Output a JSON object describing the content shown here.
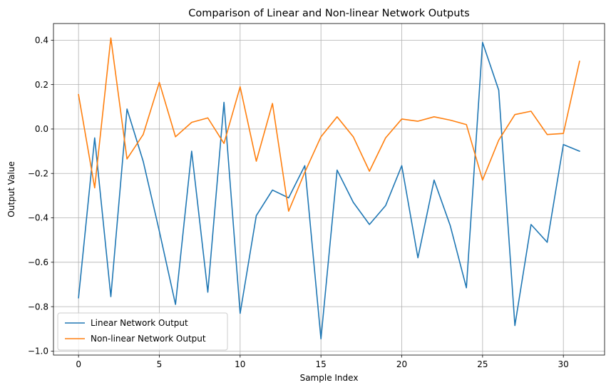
{
  "chart_data": {
    "type": "line",
    "title": "Comparison of Linear and Non-linear Network Outputs",
    "xlabel": "Sample Index",
    "ylabel": "Output Value",
    "xlim": [
      -1.55,
      32.55
    ],
    "ylim": [
      -1.018,
      0.475
    ],
    "xticks": [
      0,
      5,
      10,
      15,
      20,
      25,
      30
    ],
    "xtick_labels": [
      "0",
      "5",
      "10",
      "15",
      "20",
      "25",
      "30"
    ],
    "yticks": [
      -1.0,
      -0.8,
      -0.6,
      -0.4,
      -0.2,
      0.0,
      0.2,
      0.4
    ],
    "ytick_labels": [
      "−1.0",
      "−0.8",
      "−0.6",
      "−0.4",
      "−0.2",
      "0.0",
      "0.2",
      "0.4"
    ],
    "grid": true,
    "legend_position": "lower-left",
    "x": [
      0,
      1,
      2,
      3,
      4,
      5,
      6,
      7,
      8,
      9,
      10,
      11,
      12,
      13,
      14,
      15,
      16,
      17,
      18,
      19,
      20,
      21,
      22,
      23,
      24,
      25,
      26,
      27,
      28,
      29,
      30,
      31
    ],
    "series": [
      {
        "name": "Linear Network Output",
        "color": "#1f77b4",
        "values": [
          -0.76,
          -0.04,
          -0.755,
          0.09,
          -0.145,
          -0.46,
          -0.79,
          -0.1,
          -0.735,
          0.12,
          -0.83,
          -0.39,
          -0.275,
          -0.31,
          -0.165,
          -0.945,
          -0.185,
          -0.33,
          -0.43,
          -0.345,
          -0.165,
          -0.58,
          -0.23,
          -0.435,
          -0.715,
          0.39,
          0.175,
          -0.885,
          -0.43,
          -0.51,
          -0.07,
          -0.1
        ]
      },
      {
        "name": "Non-linear Network Output",
        "color": "#ff7f0e",
        "values": [
          0.155,
          -0.265,
          0.41,
          -0.135,
          -0.025,
          0.21,
          -0.035,
          0.03,
          0.05,
          -0.065,
          0.19,
          -0.145,
          0.115,
          -0.37,
          -0.195,
          -0.035,
          0.055,
          -0.035,
          -0.19,
          -0.04,
          0.045,
          0.035,
          0.055,
          0.04,
          0.02,
          -0.23,
          -0.05,
          0.065,
          0.08,
          -0.025,
          -0.02,
          0.305
        ]
      }
    ]
  }
}
